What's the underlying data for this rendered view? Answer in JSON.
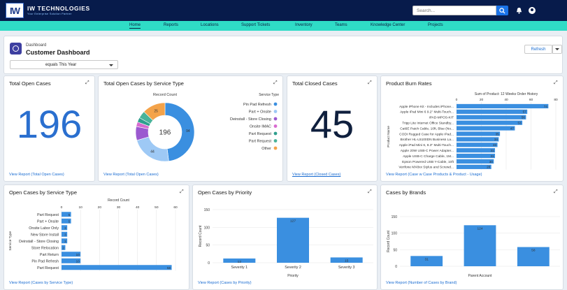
{
  "app": {
    "brand": "IW TECHNOLOGIES",
    "tagline": "Your Enterprise Solution Partner",
    "search_placeholder": "Search..."
  },
  "nav": [
    "Home",
    "Reports",
    "Locations",
    "Support Tickets",
    "Inventory",
    "Teams",
    "Knowledge Center",
    "Projects"
  ],
  "header": {
    "subtitle": "Dashboard",
    "title": "Customer Dashboard",
    "filter": "equals This Year",
    "refresh": "Refresh"
  },
  "cards": {
    "total_open": {
      "title": "Total Open Cases",
      "value": "196",
      "link": "View Report (Total Open Cases)"
    },
    "by_type": {
      "title": "Total Open Cases by Service Type",
      "link": "View Report (Total Open Cases)"
    },
    "closed": {
      "title": "Total Closed Cases",
      "value": "45",
      "link": "View Report (Closed Cases)"
    },
    "burn": {
      "title": "Product Burn Rates",
      "link": "View Report (Case w Case Products & Product - Usage)"
    },
    "open_type": {
      "title": "Open Cases by Service Type",
      "link": "View Report (Cases by Service Type)"
    },
    "priority": {
      "title": "Open Cases by Priority",
      "link": "View Report (Cases by Priority)"
    },
    "brands": {
      "title": "Cases by Brands",
      "link": "View Report (Number of Cases by Brand)"
    }
  },
  "colors": {
    "topbar": "#071b4b",
    "nav": "#2fdcc6",
    "bar": "#3a8fe0",
    "link": "#1a6cd1",
    "value": "#2a6fcf"
  },
  "chart_data": [
    {
      "type": "pie",
      "title": "Total Open Cases by Service Type",
      "center_label": "196",
      "axis_title": "Record Count",
      "legend_title": "Service Type",
      "legend_placement": "right",
      "categories": [
        "Pin Pad Refresh",
        "Part + Onsite",
        "Deinstall - Store Closing",
        "Onsite IMAC",
        "Part Request",
        "Part Request",
        "Other"
      ],
      "values": [
        94,
        44,
        15,
        5,
        5,
        8,
        25
      ],
      "data_labels": [
        "94",
        "44",
        "",
        "",
        "",
        "",
        "25"
      ],
      "colors": [
        "#3a8fe0",
        "#9ec9f5",
        "#9b59d0",
        "#d86bd0",
        "#2f9f8e",
        "#49b39a",
        "#f4a34a"
      ]
    },
    {
      "type": "bar",
      "orientation": "horizontal",
      "title": "Product Burn Rates",
      "xlabel": "Sum of Product: 12 Weeks Order History",
      "ylabel": "Product Name",
      "xlim": [
        0,
        80
      ],
      "ticks": [
        0,
        20,
        40,
        60,
        80
      ],
      "categories": [
        "Apple iPhone Kit - Includes iPhone...",
        "Apple iPad Mini 6 9.2\" Multi-Touch...",
        "iPAD-MPOS-KIT",
        "Tripp Lite Internet Office Standby...",
        "Cat6E Patch Cable, 10ft, Blue (No...",
        "CODI Rugged Case for Apple iPad...",
        "Brother HL-L5100DN Business La...",
        "Apple iPad Mini 6, 8.3\" Multi-Touch...",
        "Apple 20W USB-C Power Adapter...",
        "Apple USB-C Charge Cable, 1M...",
        "Epson Powered USB Y-Cable, 10ft",
        "Verifone MX8xx Stylus and Screwd..."
      ],
      "values": [
        74,
        57,
        56,
        53,
        47,
        35,
        34,
        33,
        31,
        31,
        30,
        28
      ]
    },
    {
      "type": "bar",
      "orientation": "horizontal",
      "title": "Open Cases by Service Type",
      "xlabel": "Record Count",
      "ylabel": "Service Type",
      "xlim": [
        0,
        60
      ],
      "ticks": [
        0,
        10,
        20,
        30,
        40,
        50,
        60
      ],
      "categories": [
        "Part Request",
        "Part + Onsite",
        "Onsite Labor Only",
        "New Store Install",
        "Deinstall - Store Closing",
        "Store Relocation",
        "Part Return",
        "Pin Pad Refresh",
        "Part Request"
      ],
      "values": [
        5,
        5,
        3,
        3,
        3,
        2,
        10,
        10,
        58
      ]
    },
    {
      "type": "bar",
      "title": "Open Cases by Priority",
      "xlabel": "Priority",
      "ylabel": "Record Count",
      "ylim": [
        0,
        150
      ],
      "ticks": [
        0,
        50,
        100,
        150
      ],
      "categories": [
        "Severity 1",
        "Severity 2",
        "Severity 3"
      ],
      "values": [
        12,
        127,
        15
      ]
    },
    {
      "type": "bar",
      "title": "Cases by Brands",
      "xlabel": "Parent Account",
      "ylabel": "Record Count",
      "ylim": [
        0,
        150
      ],
      "ticks": [
        0,
        50,
        100,
        150
      ],
      "categories": [
        "",
        "",
        ""
      ],
      "values": [
        31,
        124,
        58
      ]
    }
  ]
}
